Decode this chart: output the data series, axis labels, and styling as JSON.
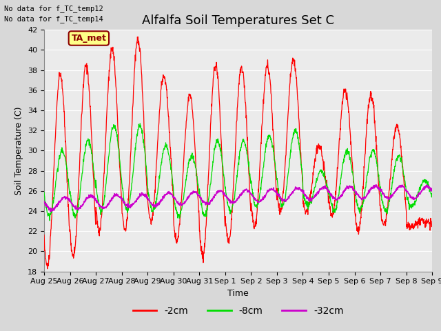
{
  "title": "Alfalfa Soil Temperatures Set C",
  "xlabel": "Time",
  "ylabel": "Soil Temperature (C)",
  "ylim": [
    18,
    42
  ],
  "yticks": [
    18,
    20,
    22,
    24,
    26,
    28,
    30,
    32,
    34,
    36,
    38,
    40,
    42
  ],
  "xtick_labels": [
    "Aug 25",
    "Aug 26",
    "Aug 27",
    "Aug 28",
    "Aug 29",
    "Aug 30",
    "Aug 31",
    "Sep 1",
    "Sep 2",
    "Sep 3",
    "Sep 4",
    "Sep 5",
    "Sep 6",
    "Sep 7",
    "Sep 8",
    "Sep 9"
  ],
  "color_2cm": "#ff0000",
  "color_8cm": "#00dd00",
  "color_32cm": "#cc00cc",
  "bg_color": "#d8d8d8",
  "plot_bg_color": "#ebebeb",
  "no_data_text1": "No data for f_TC_temp12",
  "no_data_text2": "No data for f_TC_temp14",
  "legend_label_2cm": "-2cm",
  "legend_label_8cm": "-8cm",
  "legend_label_32cm": "-32cm",
  "ta_met_label": "TA_met",
  "title_fontsize": 13,
  "label_fontsize": 9,
  "tick_fontsize": 8,
  "n_days": 15,
  "n_points": 1440,
  "peaks_2cm": [
    37.5,
    18.5,
    38.5,
    19.5,
    40.1,
    22.0,
    41.0,
    22.0,
    37.5,
    23.0,
    35.5,
    21.0,
    38.5,
    19.5,
    38.3,
    21.0,
    38.5,
    22.5,
    39.0,
    24.0,
    30.5,
    24.0,
    36.0,
    23.5,
    35.5,
    22.0,
    32.5,
    22.5,
    23.0,
    22.5
  ],
  "peaks_8cm": [
    30.0,
    23.5,
    31.0,
    23.5,
    32.5,
    24.0,
    32.5,
    24.0,
    30.5,
    24.0,
    29.5,
    23.5,
    31.0,
    23.5,
    31.0,
    24.0,
    31.5,
    24.5,
    32.0,
    24.5,
    28.0,
    24.5,
    30.0,
    24.0,
    30.0,
    24.0,
    29.5,
    24.0,
    27.0,
    24.5
  ]
}
